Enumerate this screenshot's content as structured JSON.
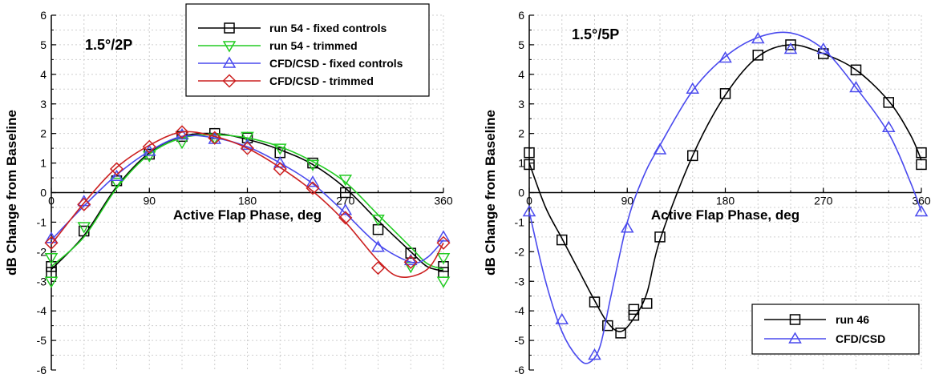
{
  "chart_data": [
    {
      "type": "line",
      "annotation": "1.5°/2P",
      "xlabel": "Active Flap Phase, deg",
      "ylabel": "dB Change from Baseline",
      "xlim": [
        0,
        360
      ],
      "ylim": [
        -6,
        6
      ],
      "xticks": [
        "0",
        "90",
        "180",
        "270",
        "360"
      ],
      "yticks": [
        "-6",
        "-5",
        "-4",
        "-3",
        "-2",
        "-1",
        "0",
        "1",
        "2",
        "3",
        "4",
        "5",
        "6"
      ],
      "grid": true,
      "legend_position": "top-right",
      "series": [
        {
          "name": "run 54 - fixed controls",
          "color": "#000000",
          "marker": "square",
          "x": [
            0,
            0,
            30,
            60,
            90,
            120,
            150,
            180,
            210,
            240,
            270,
            300,
            330,
            360,
            360
          ],
          "y": [
            -2.5,
            -2.7,
            -1.3,
            0.4,
            1.3,
            1.9,
            2.0,
            1.85,
            1.35,
            1.0,
            0.0,
            -1.25,
            -2.05,
            -2.5,
            -2.7
          ],
          "curve_x": [
            0,
            30,
            60,
            90,
            120,
            150,
            180,
            210,
            240,
            270,
            300,
            330,
            345,
            360
          ],
          "curve_y": [
            -2.6,
            -1.45,
            0.2,
            1.35,
            1.9,
            2.0,
            1.8,
            1.45,
            0.95,
            0.15,
            -0.95,
            -2.0,
            -2.5,
            -2.65
          ]
        },
        {
          "name": "run 54 - trimmed",
          "color": "#22cc22",
          "marker": "triangle-down",
          "x": [
            0,
            0,
            30,
            60,
            90,
            120,
            150,
            180,
            210,
            240,
            270,
            300,
            330,
            360,
            360
          ],
          "y": [
            -2.2,
            -3.0,
            -1.15,
            0.35,
            1.25,
            1.7,
            1.85,
            1.9,
            1.5,
            0.95,
            0.45,
            -0.9,
            -2.5,
            -2.2,
            -3.0
          ],
          "curve_x": [
            0,
            30,
            60,
            90,
            120,
            150,
            180,
            210,
            240,
            270,
            300,
            330,
            345,
            360
          ],
          "curve_y": [
            -2.5,
            -1.5,
            0.15,
            1.3,
            1.85,
            1.95,
            1.85,
            1.55,
            1.05,
            0.35,
            -0.75,
            -1.85,
            -2.4,
            -2.6
          ]
        },
        {
          "name": "CFD/CSD - fixed controls",
          "color": "#4a4aee",
          "marker": "triangle-up",
          "x": [
            0,
            30,
            60,
            90,
            120,
            150,
            180,
            210,
            240,
            270,
            300,
            330,
            360
          ],
          "y": [
            -1.55,
            -0.3,
            0.55,
            1.4,
            1.95,
            1.8,
            1.6,
            1.0,
            0.35,
            -0.6,
            -1.85,
            -2.3,
            -1.5
          ],
          "curve_x": [
            0,
            30,
            60,
            90,
            120,
            150,
            180,
            210,
            240,
            270,
            300,
            330,
            345,
            360
          ],
          "curve_y": [
            -1.6,
            -0.45,
            0.6,
            1.4,
            1.9,
            1.85,
            1.55,
            1.0,
            0.3,
            -0.7,
            -1.75,
            -2.35,
            -2.2,
            -1.6
          ]
        },
        {
          "name": "CFD/CSD - trimmed",
          "color": "#cc2020",
          "marker": "diamond",
          "x": [
            0,
            30,
            60,
            90,
            120,
            150,
            180,
            210,
            240,
            270,
            300,
            330,
            360
          ],
          "y": [
            -1.7,
            -0.4,
            0.8,
            1.55,
            2.05,
            1.85,
            1.5,
            0.8,
            0.15,
            -0.85,
            -2.55,
            -2.35,
            -1.7
          ],
          "curve_x": [
            0,
            30,
            60,
            90,
            120,
            150,
            180,
            210,
            240,
            270,
            300,
            320,
            345,
            360
          ],
          "curve_y": [
            -1.75,
            -0.35,
            0.85,
            1.6,
            2.05,
            1.9,
            1.5,
            0.85,
            0.05,
            -1.0,
            -2.3,
            -2.85,
            -2.6,
            -1.7
          ]
        }
      ]
    },
    {
      "type": "line",
      "annotation": "1.5°/5P",
      "xlabel": "Active Flap Phase, deg",
      "ylabel": "dB Change from Baseline",
      "xlim": [
        0,
        360
      ],
      "ylim": [
        -6,
        6
      ],
      "xticks": [
        "0",
        "90",
        "180",
        "270",
        "360"
      ],
      "yticks": [
        "-6",
        "-5",
        "-4",
        "-3",
        "-2",
        "-1",
        "0",
        "1",
        "2",
        "3",
        "4",
        "5",
        "6"
      ],
      "grid": true,
      "legend_position": "bottom-right",
      "series": [
        {
          "name": "run 46",
          "color": "#000000",
          "marker": "square",
          "x": [
            0,
            0,
            30,
            60,
            72,
            84,
            96,
            96,
            108,
            120,
            150,
            180,
            210,
            240,
            270,
            300,
            330,
            360,
            360
          ],
          "y": [
            1.35,
            0.95,
            -1.6,
            -3.7,
            -4.5,
            -4.75,
            -4.15,
            -3.95,
            -3.75,
            -1.5,
            1.25,
            3.35,
            4.65,
            5.0,
            4.7,
            4.15,
            3.05,
            1.35,
            0.95
          ],
          "curve_x": [
            0,
            15,
            30,
            45,
            60,
            72,
            84,
            96,
            108,
            120,
            150,
            180,
            210,
            240,
            270,
            300,
            330,
            350,
            360
          ],
          "curve_y": [
            1.0,
            -0.5,
            -1.55,
            -2.6,
            -3.65,
            -4.4,
            -4.7,
            -4.25,
            -3.4,
            -1.6,
            1.25,
            3.3,
            4.6,
            5.0,
            4.7,
            4.15,
            3.1,
            1.95,
            1.1
          ]
        },
        {
          "name": "CFD/CSD",
          "color": "#4a4aee",
          "marker": "triangle-up",
          "x": [
            0,
            30,
            60,
            90,
            120,
            150,
            180,
            210,
            240,
            270,
            300,
            330,
            360
          ],
          "y": [
            -0.65,
            -4.3,
            -5.5,
            -1.2,
            1.45,
            3.5,
            4.55,
            5.2,
            4.85,
            4.85,
            3.55,
            2.2,
            -0.65
          ],
          "curve_x": [
            0,
            15,
            30,
            45,
            55,
            65,
            75,
            90,
            105,
            120,
            150,
            180,
            210,
            240,
            270,
            300,
            330,
            350,
            360
          ],
          "curve_y": [
            -0.65,
            -3.0,
            -4.7,
            -5.6,
            -5.75,
            -5.2,
            -3.5,
            -1.0,
            0.55,
            1.6,
            3.45,
            4.6,
            5.25,
            5.4,
            4.85,
            3.55,
            2.0,
            0.35,
            -0.65
          ]
        }
      ]
    }
  ]
}
